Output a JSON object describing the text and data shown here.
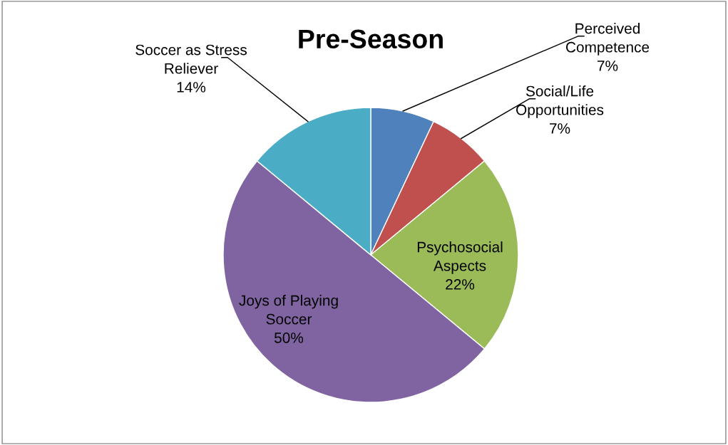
{
  "chart_data": {
    "type": "pie",
    "title": "Pre-Season",
    "categories": [
      "Perceived\nCompetence",
      "Social/Life\nOpportunities",
      "Psychosocial\nAspects",
      "Joys of Playing\nSoccer",
      "Soccer as Stress\nReliever"
    ],
    "values": [
      7,
      7,
      22,
      50,
      14
    ],
    "value_labels": [
      "7%",
      "7%",
      "22%",
      "50%",
      "14%"
    ],
    "colors": [
      "#4f81bd",
      "#c0504d",
      "#9bbb59",
      "#8064a2",
      "#4bacc6"
    ],
    "legend": false
  }
}
